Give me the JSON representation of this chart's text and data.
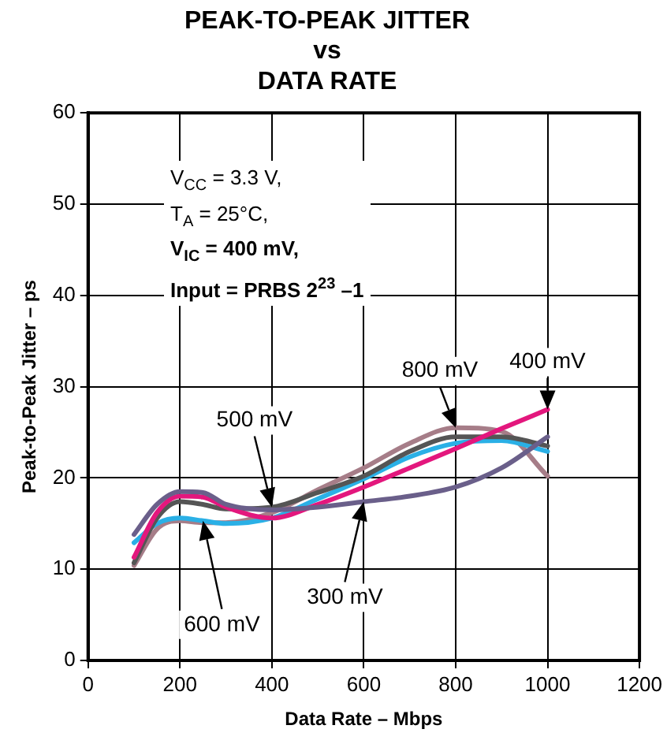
{
  "chart_data": {
    "type": "line",
    "title": "PEAK-TO-PEAK JITTER\nvs\nDATA RATE",
    "xlabel": "Data Rate – Mbps",
    "ylabel": "Peak-to-Peak Jitter – ps",
    "x": [
      100,
      150,
      200,
      250,
      300,
      400,
      500,
      600,
      700,
      800,
      900,
      1000
    ],
    "series": [
      {
        "name": "300 mV",
        "color": "#6a5f8a",
        "values": [
          13.8,
          17.1,
          18.5,
          18.4,
          17.1,
          16.5,
          16.8,
          17.4,
          18.0,
          19.0,
          21.1,
          24.5
        ]
      },
      {
        "name": "400 mV",
        "color": "#e3177d",
        "values": [
          11.3,
          16.2,
          18.0,
          17.9,
          16.8,
          15.6,
          17.1,
          19.0,
          21.1,
          23.2,
          25.4,
          27.5
        ]
      },
      {
        "name": "500 mV",
        "color": "#555555",
        "values": [
          10.7,
          15.6,
          17.4,
          17.1,
          16.6,
          16.8,
          18.4,
          20.2,
          22.9,
          24.5,
          24.5,
          23.5
        ]
      },
      {
        "name": "600 mV",
        "color": "#2ab0e6",
        "values": [
          12.9,
          15.0,
          15.6,
          15.3,
          15.0,
          15.6,
          17.7,
          19.9,
          22.3,
          23.8,
          24.1,
          22.9
        ]
      },
      {
        "name": "800 mV",
        "color": "#a67d88",
        "values": [
          10.4,
          14.4,
          15.3,
          15.1,
          15.1,
          16.2,
          18.7,
          21.1,
          23.8,
          25.5,
          25.1,
          20.2
        ]
      }
    ],
    "xlim": [
      0,
      1200
    ],
    "xticks": [
      0,
      200,
      400,
      600,
      800,
      1000,
      1200
    ],
    "ylim": [
      0,
      60
    ],
    "yticks": [
      0,
      10,
      20,
      30,
      40,
      50,
      60
    ],
    "grid": true,
    "legend": false,
    "marker": "none",
    "line_style": "solid",
    "annotations": [
      "V$_{CC}$ = 3.3 V,",
      "T$_{A}$ = 25°C,",
      "V$_{IC}$ = 400 mV,",
      "Input = PRBS 2$^{23}$ –1"
    ]
  }
}
